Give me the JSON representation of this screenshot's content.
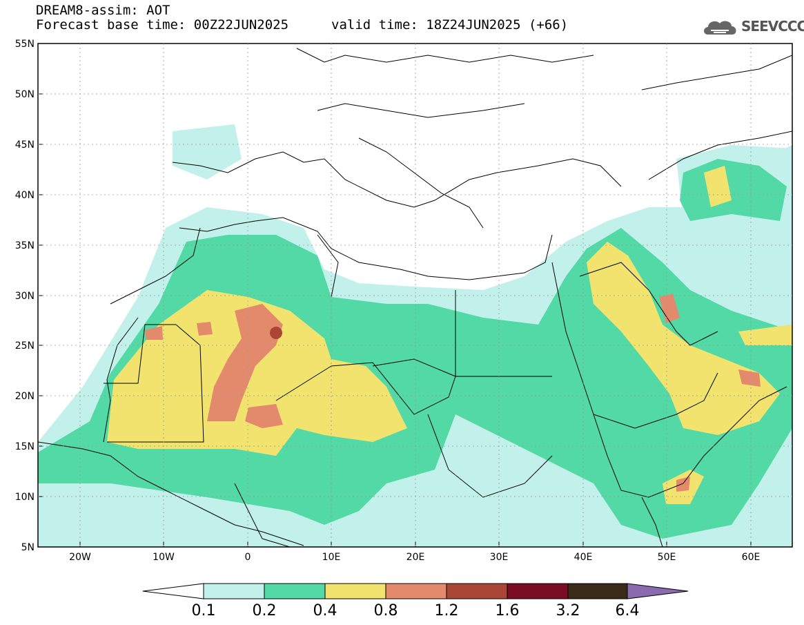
{
  "header": {
    "title": "DREAM8-assim: AOT",
    "base_time": "Forecast base time: 00Z22JUN2025",
    "valid_time": "valid time: 18Z24JUN2025 (+66)",
    "logo_text": "SEEVCCC"
  },
  "map": {
    "lat_labels": [
      "55N",
      "50N",
      "45N",
      "40N",
      "35N",
      "30N",
      "25N",
      "20N",
      "15N",
      "10N",
      "5N"
    ],
    "lon_labels": [
      "20W",
      "10W",
      "0",
      "10E",
      "20E",
      "30E",
      "40E",
      "50E",
      "60E"
    ],
    "lat_values": [
      55,
      50,
      45,
      40,
      35,
      30,
      25,
      20,
      15,
      10,
      5
    ],
    "lon_values": [
      -20,
      -10,
      0,
      10,
      20,
      30,
      40,
      50,
      60
    ],
    "lon_range": [
      -25,
      65
    ],
    "lat_range": [
      5,
      55
    ]
  },
  "colorbar": {
    "labels": [
      "0.1",
      "0.2",
      "0.4",
      "0.8",
      "1.2",
      "1.6",
      "3.2",
      "6.4"
    ],
    "colors": [
      "#ffffff",
      "#c2f0ea",
      "#53d9a6",
      "#f2e36e",
      "#e48a6c",
      "#a94636",
      "#7a0c24",
      "#3a2a18",
      "#8a6bb0"
    ]
  },
  "levels": {
    "c1": "#c2f0ea",
    "c2": "#53d9a6",
    "c3": "#f2e36e",
    "c4": "#e48a6c",
    "c5": "#a94636"
  }
}
